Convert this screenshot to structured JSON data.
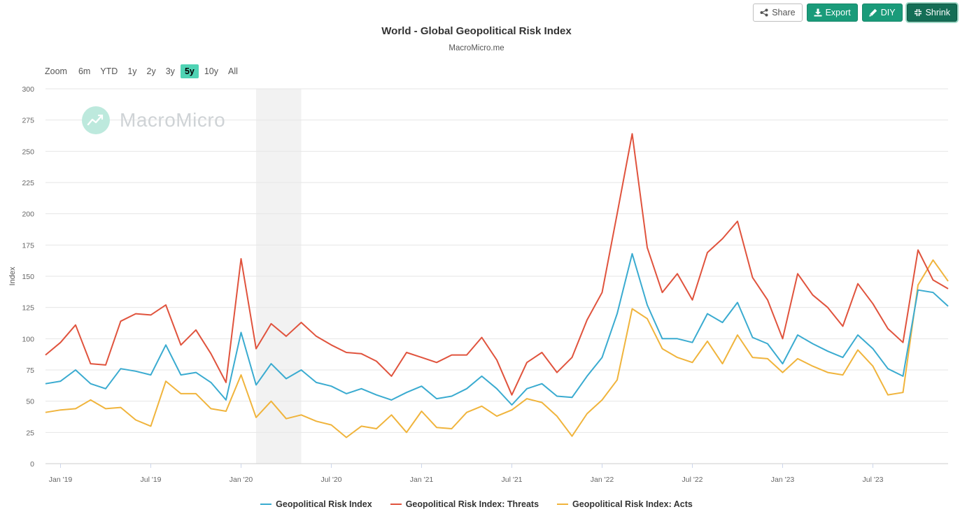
{
  "toolbar": {
    "share_label": "Share",
    "export_label": "Export",
    "diy_label": "DIY",
    "shrink_label": "Shrink"
  },
  "range_selector": {
    "zoom_label": "Zoom",
    "options": [
      "6m",
      "YTD",
      "1y",
      "2y",
      "3y",
      "5y",
      "10y",
      "All"
    ],
    "active": "5y"
  },
  "watermark": {
    "text": "MacroMicro"
  },
  "colors": {
    "index": "#3aabd0",
    "threats": "#e0533d",
    "acts": "#f0b43c",
    "recession_band": "#f2f2f2",
    "grid": "#e6e6e6"
  },
  "chart_data": {
    "type": "line",
    "title": "World - Global Geopolitical Risk Index",
    "subtitle": "MacroMicro.me",
    "ylabel": "Index",
    "xlabel": "",
    "ylim": [
      0,
      300
    ],
    "yticks": [
      0,
      25,
      50,
      75,
      100,
      125,
      150,
      175,
      200,
      225,
      250,
      275,
      300
    ],
    "x_start": "Dec 2018",
    "x_step": "monthly",
    "x_ticks": [
      {
        "label": "Jan '19",
        "index": 1
      },
      {
        "label": "Jul '19",
        "index": 7
      },
      {
        "label": "Jan '20",
        "index": 13
      },
      {
        "label": "Jul '20",
        "index": 19
      },
      {
        "label": "Jan '21",
        "index": 25
      },
      {
        "label": "Jul '21",
        "index": 31
      },
      {
        "label": "Jan '22",
        "index": 37
      },
      {
        "label": "Jul '22",
        "index": 43
      },
      {
        "label": "Jan '23",
        "index": 49
      },
      {
        "label": "Jul '23",
        "index": 55
      }
    ],
    "shaded_range": {
      "from_index": 14,
      "to_index": 17
    },
    "grid": true,
    "legend_position": "bottom-center",
    "series": [
      {
        "name": "Geopolitical Risk Index",
        "key": "index",
        "values": [
          64,
          66,
          75,
          64,
          60,
          76,
          74,
          71,
          95,
          71,
          73,
          65,
          51,
          105,
          63,
          80,
          68,
          75,
          65,
          62,
          56,
          60,
          55,
          51,
          57,
          62,
          52,
          54,
          60,
          70,
          60,
          47,
          60,
          64,
          54,
          53,
          70,
          85,
          120,
          168,
          127,
          100,
          100,
          97,
          120,
          113,
          129,
          101,
          96,
          80,
          103,
          96,
          90,
          85,
          103,
          92,
          76,
          70,
          139,
          137,
          126
        ]
      },
      {
        "name": "Geopolitical Risk Index: Threats",
        "key": "threats",
        "values": [
          87,
          97,
          111,
          80,
          79,
          114,
          120,
          119,
          127,
          95,
          107,
          88,
          65,
          164,
          92,
          112,
          102,
          113,
          102,
          95,
          89,
          88,
          82,
          70,
          89,
          85,
          81,
          87,
          87,
          101,
          83,
          55,
          81,
          89,
          73,
          85,
          115,
          137,
          200,
          264,
          173,
          137,
          152,
          131,
          169,
          180,
          194,
          149,
          131,
          100,
          152,
          135,
          125,
          110,
          144,
          128,
          108,
          97,
          171,
          147,
          140
        ]
      },
      {
        "name": "Geopolitical Risk Index: Acts",
        "key": "acts",
        "values": [
          41,
          43,
          44,
          51,
          44,
          45,
          35,
          30,
          66,
          56,
          56,
          44,
          42,
          71,
          37,
          50,
          36,
          39,
          34,
          31,
          21,
          30,
          28,
          39,
          25,
          42,
          29,
          28,
          41,
          46,
          38,
          43,
          52,
          49,
          38,
          22,
          40,
          51,
          67,
          124,
          116,
          92,
          85,
          81,
          98,
          80,
          103,
          85,
          84,
          73,
          84,
          78,
          73,
          71,
          91,
          78,
          55,
          57,
          143,
          163,
          146
        ]
      }
    ]
  }
}
